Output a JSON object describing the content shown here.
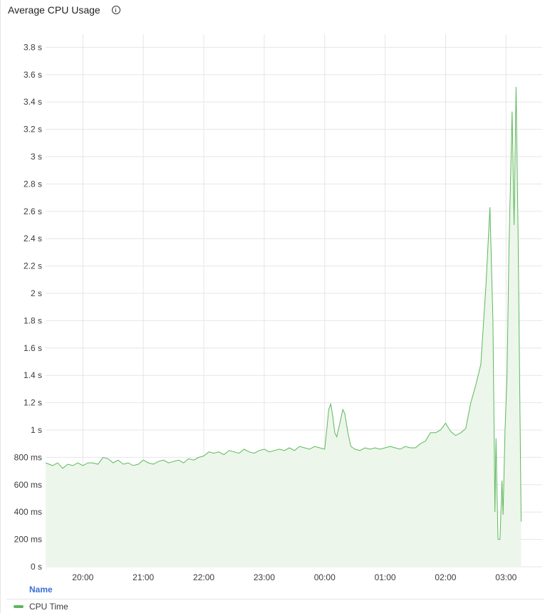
{
  "title": "Average CPU Usage",
  "colors": {
    "series": "#5cb85c",
    "fill": "#edf6eb",
    "grid": "#e6e6e6"
  },
  "legend": {
    "header": "Name",
    "items": [
      {
        "label": "CPU Time"
      }
    ]
  },
  "chart_data": {
    "type": "area",
    "title": "Average CPU Usage",
    "xlabel": "",
    "ylabel": "",
    "y_unit": "ms",
    "ylim": [
      0,
      3800
    ],
    "yticks": [
      {
        "v": 0,
        "label": "0 s"
      },
      {
        "v": 200,
        "label": "200 ms"
      },
      {
        "v": 400,
        "label": "400 ms"
      },
      {
        "v": 600,
        "label": "600 ms"
      },
      {
        "v": 800,
        "label": "800 ms"
      },
      {
        "v": 1000,
        "label": "1 s"
      },
      {
        "v": 1200,
        "label": "1.2 s"
      },
      {
        "v": 1400,
        "label": "1.4 s"
      },
      {
        "v": 1600,
        "label": "1.6 s"
      },
      {
        "v": 1800,
        "label": "1.8 s"
      },
      {
        "v": 2000,
        "label": "2 s"
      },
      {
        "v": 2200,
        "label": "2.2 s"
      },
      {
        "v": 2400,
        "label": "2.4 s"
      },
      {
        "v": 2600,
        "label": "2.6 s"
      },
      {
        "v": 2800,
        "label": "2.8 s"
      },
      {
        "v": 3000,
        "label": "3 s"
      },
      {
        "v": 3200,
        "label": "3.2 s"
      },
      {
        "v": 3400,
        "label": "3.4 s"
      },
      {
        "v": 3600,
        "label": "3.6 s"
      },
      {
        "v": 3800,
        "label": "3.8 s"
      }
    ],
    "xlim": [
      "19:23",
      "03:21"
    ],
    "xticks": [
      "20:00",
      "21:00",
      "22:00",
      "23:00",
      "00:00",
      "01:00",
      "02:00",
      "03:00"
    ],
    "grid": true,
    "legend_position": "bottom",
    "series": [
      {
        "name": "CPU Time",
        "points": [
          [
            "19:23",
            760
          ],
          [
            "19:30",
            740
          ],
          [
            "19:35",
            760
          ],
          [
            "19:40",
            720
          ],
          [
            "19:45",
            750
          ],
          [
            "19:50",
            740
          ],
          [
            "19:55",
            760
          ],
          [
            "20:00",
            740
          ],
          [
            "20:05",
            760
          ],
          [
            "20:10",
            760
          ],
          [
            "20:15",
            750
          ],
          [
            "20:20",
            800
          ],
          [
            "20:25",
            790
          ],
          [
            "20:30",
            760
          ],
          [
            "20:35",
            780
          ],
          [
            "20:40",
            750
          ],
          [
            "20:45",
            760
          ],
          [
            "20:50",
            740
          ],
          [
            "20:55",
            750
          ],
          [
            "21:00",
            780
          ],
          [
            "21:05",
            760
          ],
          [
            "21:10",
            750
          ],
          [
            "21:15",
            770
          ],
          [
            "21:20",
            780
          ],
          [
            "21:25",
            760
          ],
          [
            "21:30",
            770
          ],
          [
            "21:35",
            780
          ],
          [
            "21:40",
            760
          ],
          [
            "21:45",
            790
          ],
          [
            "21:50",
            780
          ],
          [
            "21:55",
            800
          ],
          [
            "22:00",
            810
          ],
          [
            "22:05",
            840
          ],
          [
            "22:10",
            830
          ],
          [
            "22:15",
            840
          ],
          [
            "22:20",
            820
          ],
          [
            "22:25",
            850
          ],
          [
            "22:30",
            840
          ],
          [
            "22:35",
            830
          ],
          [
            "22:40",
            860
          ],
          [
            "22:45",
            840
          ],
          [
            "22:50",
            830
          ],
          [
            "22:55",
            850
          ],
          [
            "23:00",
            860
          ],
          [
            "23:05",
            840
          ],
          [
            "23:10",
            850
          ],
          [
            "23:15",
            860
          ],
          [
            "23:20",
            850
          ],
          [
            "23:25",
            870
          ],
          [
            "23:30",
            850
          ],
          [
            "23:35",
            880
          ],
          [
            "23:40",
            870
          ],
          [
            "23:45",
            860
          ],
          [
            "23:50",
            880
          ],
          [
            "23:55",
            870
          ],
          [
            "00:00",
            860
          ],
          [
            "00:02",
            1000
          ],
          [
            "00:04",
            1150
          ],
          [
            "00:06",
            1190
          ],
          [
            "00:08",
            1100
          ],
          [
            "00:10",
            980
          ],
          [
            "00:12",
            950
          ],
          [
            "00:15",
            1050
          ],
          [
            "00:18",
            1150
          ],
          [
            "00:20",
            1120
          ],
          [
            "00:23",
            980
          ],
          [
            "00:26",
            880
          ],
          [
            "00:30",
            860
          ],
          [
            "00:35",
            850
          ],
          [
            "00:40",
            870
          ],
          [
            "00:45",
            860
          ],
          [
            "00:50",
            870
          ],
          [
            "00:55",
            860
          ],
          [
            "01:00",
            870
          ],
          [
            "01:05",
            880
          ],
          [
            "01:10",
            870
          ],
          [
            "01:15",
            860
          ],
          [
            "01:20",
            880
          ],
          [
            "01:25",
            870
          ],
          [
            "01:30",
            870
          ],
          [
            "01:35",
            900
          ],
          [
            "01:40",
            920
          ],
          [
            "01:45",
            980
          ],
          [
            "01:50",
            980
          ],
          [
            "01:55",
            1000
          ],
          [
            "02:00",
            1050
          ],
          [
            "02:05",
            990
          ],
          [
            "02:10",
            960
          ],
          [
            "02:15",
            980
          ],
          [
            "02:20",
            1010
          ],
          [
            "02:25",
            1200
          ],
          [
            "02:30",
            1330
          ],
          [
            "02:35",
            1480
          ],
          [
            "02:40",
            2050
          ],
          [
            "02:44",
            2630
          ],
          [
            "02:47",
            1800
          ],
          [
            "02:49",
            400
          ],
          [
            "02:50",
            940
          ],
          [
            "02:52",
            200
          ],
          [
            "02:54",
            200
          ],
          [
            "02:56",
            630
          ],
          [
            "02:57",
            380
          ],
          [
            "02:59",
            1000
          ],
          [
            "03:01",
            1400
          ],
          [
            "03:03",
            2350
          ],
          [
            "03:06",
            3330
          ],
          [
            "03:08",
            2500
          ],
          [
            "03:10",
            3510
          ],
          [
            "03:12",
            2400
          ],
          [
            "03:15",
            330
          ]
        ]
      }
    ]
  }
}
